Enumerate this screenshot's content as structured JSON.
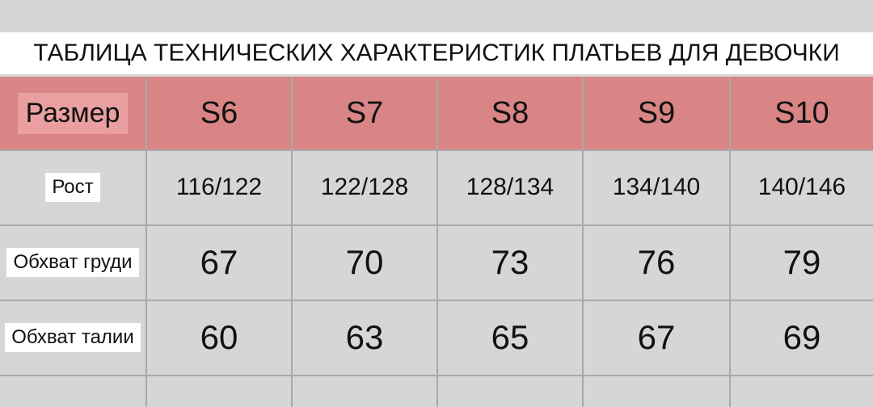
{
  "header": {
    "title": "ТАБЛИЦА ТЕХНИЧЕСКИХ ХАРАКТЕРИСТИК ПЛАТЬЕВ ДЛЯ ДЕВОЧКИ"
  },
  "table": {
    "header": [
      "Размер",
      "S6",
      "S7",
      "S8",
      "S9",
      "S10"
    ],
    "rows": [
      [
        "Рост",
        "116/122",
        "122/128",
        "128/134",
        "134/140",
        "140/146"
      ],
      [
        "Обхват груди",
        67,
        70,
        73,
        76,
        79
      ],
      [
        "Обхват талии",
        60,
        63,
        65,
        67,
        69
      ]
    ]
  }
}
